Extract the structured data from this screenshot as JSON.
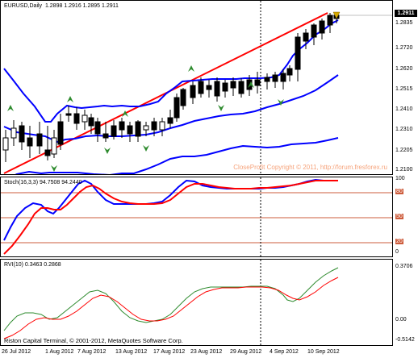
{
  "main": {
    "title": "EURUSD,Daily",
    "ohlc": "1.2898 1.2916 1.2895 1.2911",
    "watermark": "CloseProfit Copyright © 2011, http://forum.fresforex.ru",
    "current_price": "1.2911",
    "yticks": [
      "1.2911",
      "1.2835",
      "1.2720",
      "1.2620",
      "1.2515",
      "1.2410",
      "1.2310",
      "1.2205",
      "1.2100"
    ],
    "colors": {
      "bands": "#0000ff",
      "trendline": "#ff0000",
      "arrows": "#2e8b2e",
      "candle": "#000000"
    }
  },
  "stoch": {
    "title": "Stoch(16,3,3) 94.7508 94.2440",
    "yticks": [
      "100",
      "80",
      "50",
      "20",
      "0"
    ],
    "colors": {
      "main": "#0000ff",
      "signal": "#ff0000",
      "levels": "#cd5c3c"
    }
  },
  "rvi": {
    "title": "RVI(10) 0.3463 0.2868",
    "yticks": [
      "0.3706",
      "0.00",
      "-0.5142"
    ],
    "footer": "Riston Capital Terminal, © 2001-2012, MetaQuotes Software Corp.",
    "colors": {
      "main": "#2e8b2e",
      "signal": "#ff0000"
    }
  },
  "xaxis": {
    "labels": [
      "26 Jul 2012",
      "1 Aug 2012",
      "7 Aug 2012",
      "13 Aug 2012",
      "17 Aug 2012",
      "23 Aug 2012",
      "29 Aug 2012",
      "4 Sep 2012",
      "10 Sep 2012"
    ]
  }
}
